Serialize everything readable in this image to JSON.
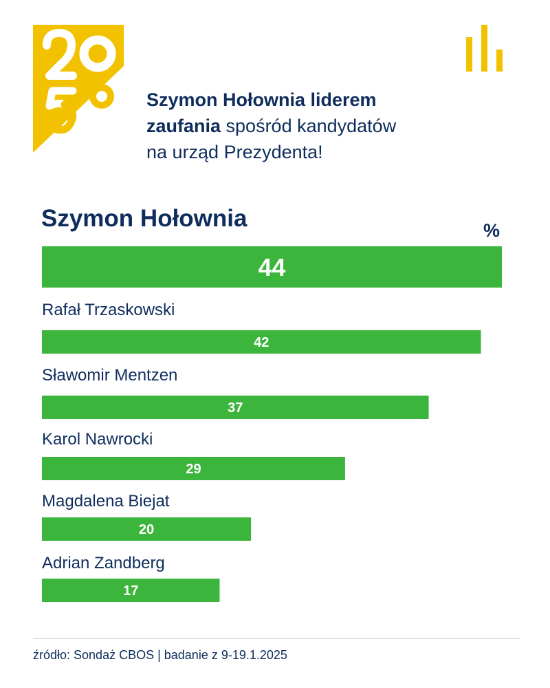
{
  "brand": {
    "logo_text": "2050",
    "colors": {
      "yellow": "#f2c200",
      "navy": "#0f2d5c",
      "green": "#3cb53c"
    },
    "icon": "bar-chart-icon"
  },
  "headline": {
    "bold": "Szymon Hołownia liderem",
    "bold2": "zaufania",
    "rest": " spośród kandydatów",
    "line3": "na urząd Prezydenta!"
  },
  "chart_data": {
    "type": "bar",
    "orientation": "horizontal",
    "unit_label": "%",
    "xlim": [
      0,
      44
    ],
    "categories": [
      "Szymon Hołownia",
      "Rafał Trzaskowski",
      "Sławomir Mentzen",
      "Karol Nawrocki",
      "Magdalena Biejat",
      "Adrian Zandberg"
    ],
    "values": [
      44,
      42,
      37,
      29,
      20,
      17
    ],
    "highlight": "Szymon Hołownia"
  },
  "footer": {
    "source": "źródło: Sondaż CBOS | badanie z 9-19.1.2025"
  }
}
